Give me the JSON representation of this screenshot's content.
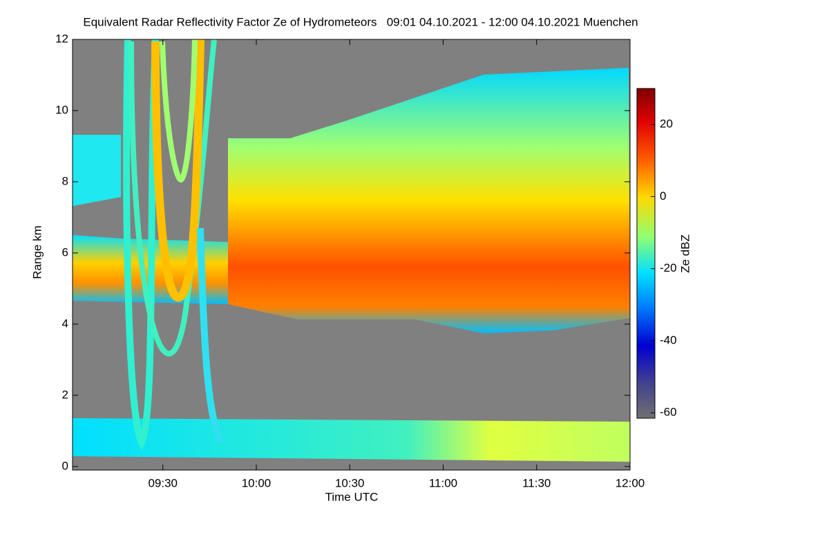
{
  "chart_data": {
    "type": "heatmap",
    "title": "Equivalent Radar Reflectivity Factor Ze of Hydrometeors   09:01 04.10.2021 - 12:00 04.10.2021 Muenchen",
    "x_label": "Time UTC",
    "y_label": "Range km",
    "colorbar_label": "Ze dBZ",
    "xlim": [
      541,
      720
    ],
    "xticks": [
      {
        "value": 570,
        "label": "09:30"
      },
      {
        "value": 600,
        "label": "10:00"
      },
      {
        "value": 630,
        "label": "10:30"
      },
      {
        "value": 660,
        "label": "11:00"
      },
      {
        "value": 690,
        "label": "11:30"
      },
      {
        "value": 720,
        "label": "12:00"
      }
    ],
    "ylim": [
      -0.1,
      12
    ],
    "yticks": [
      0,
      2,
      4,
      6,
      8,
      10,
      12
    ],
    "clim": [
      -61.5,
      30
    ],
    "cticks": [
      20,
      0,
      -20,
      -40,
      -60
    ],
    "background_color": "#808080"
  }
}
